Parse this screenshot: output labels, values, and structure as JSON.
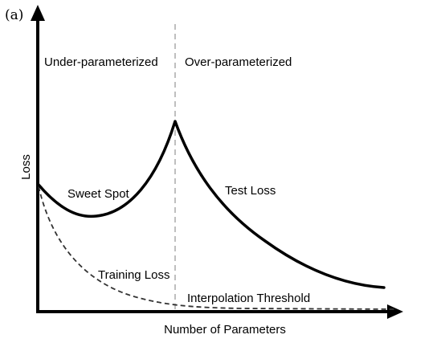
{
  "panel_label": "(a)",
  "regions": {
    "left": "Under-parameterized",
    "right": "Over-parameterized"
  },
  "axes": {
    "x_label": "Number of Parameters",
    "y_label": "Loss"
  },
  "annotations": {
    "sweet_spot": "Sweet Spot",
    "test_loss": "Test Loss",
    "training_loss": "Training Loss",
    "interpolation_threshold": "Interpolation Threshold"
  },
  "colors": {
    "axis": "#000000",
    "test_curve": "#000000",
    "training_curve": "#333333",
    "threshold_line": "#aaaaaa"
  }
}
